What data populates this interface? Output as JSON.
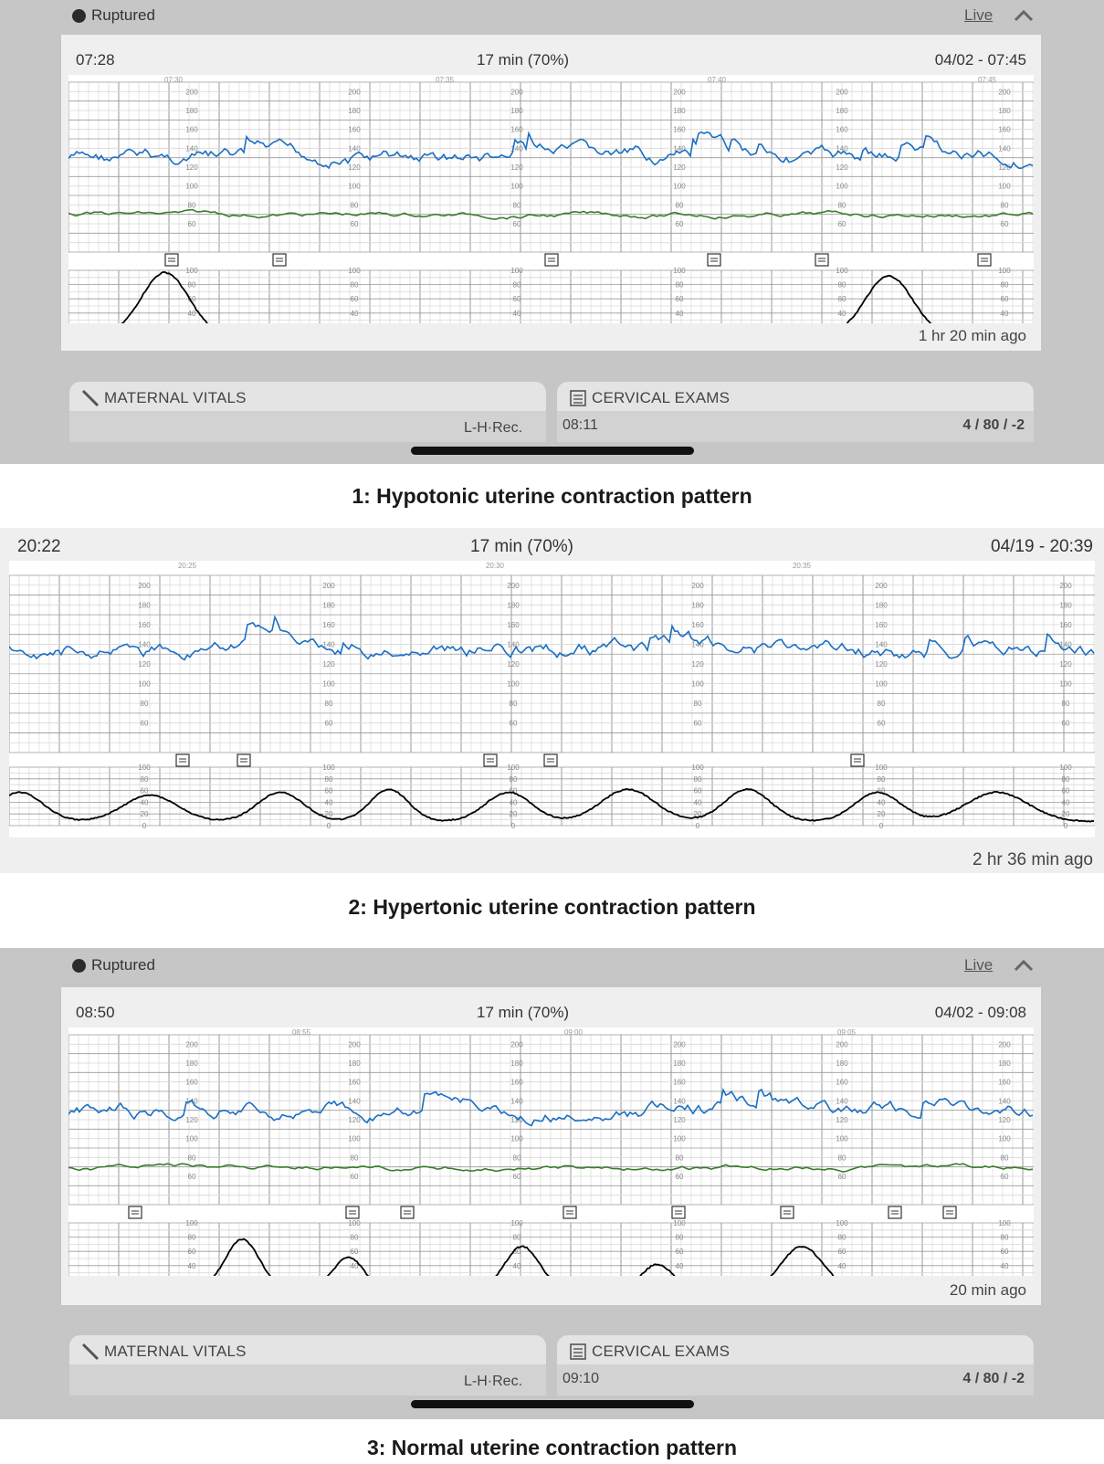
{
  "panels": [
    {
      "status": "Ruptured",
      "live_label": "Live",
      "start_time": "07:28",
      "window": "17 min (70%)",
      "end_datetime": "04/02 - 07:45",
      "time_ticks": [
        "07:30",
        "07:35",
        "07:40",
        "07:45"
      ],
      "ago": "1 hr 20 min ago",
      "maternal_vitals_label": "MATERNAL VITALS",
      "maternal_vitals_sub": "L-H·Rec.",
      "cervical_label": "CERVICAL EXAMS",
      "cervical_time": "08:11",
      "cervical_value": "4 / 80 / -2",
      "caption": "1: Hypotonic uterine contraction pattern"
    },
    {
      "start_time": "20:22",
      "window": "17 min (70%)",
      "end_datetime": "04/19 - 20:39",
      "time_ticks": [
        "20:25",
        "20:30",
        "20:35"
      ],
      "ago": "2 hr 36 min ago",
      "caption": "2: Hypertonic uterine contraction pattern"
    },
    {
      "status": "Ruptured",
      "live_label": "Live",
      "start_time": "08:50",
      "window": "17 min (70%)",
      "end_datetime": "04/02 - 09:08",
      "time_ticks": [
        "08:55",
        "09:00",
        "09:05"
      ],
      "ago": "20 min ago",
      "maternal_vitals_label": "MATERNAL VITALS",
      "maternal_vitals_sub": "L-H·Rec.",
      "cervical_label": "CERVICAL EXAMS",
      "cervical_time": "09:10",
      "cervical_value": "4 / 80 / -2",
      "caption": "3: Normal uterine contraction pattern"
    }
  ],
  "fhr_scale": [
    "200",
    "180",
    "160",
    "140",
    "120",
    "100",
    "80",
    "60"
  ],
  "toco_scale": [
    "100",
    "80",
    "60",
    "40",
    "20",
    "0"
  ],
  "colors": {
    "fhr": "#1a6fc4",
    "maternal_hr": "#3a7d2c",
    "toco": "#000000",
    "panel_bg": "#c6c6c6"
  }
}
